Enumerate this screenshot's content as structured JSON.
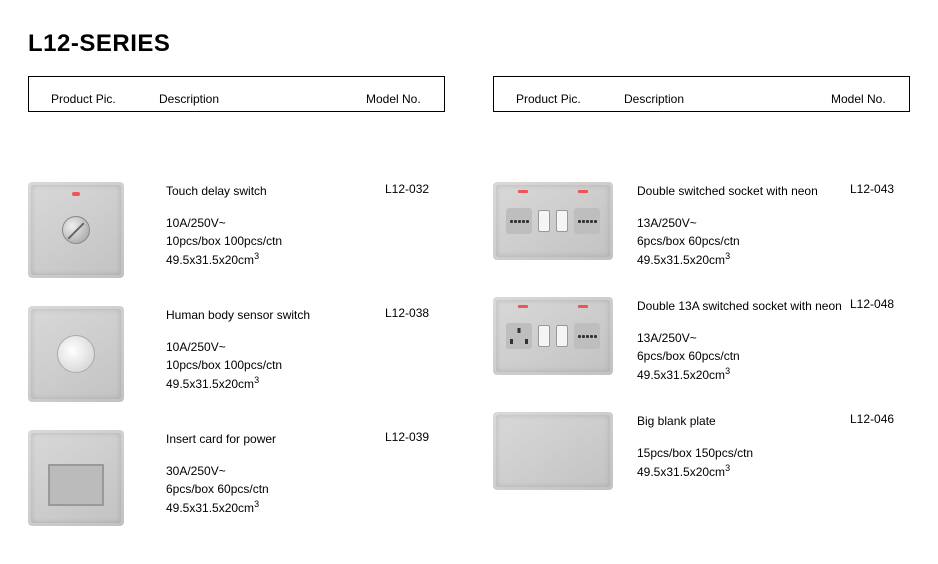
{
  "series_title": "L12-SERIES",
  "headers": {
    "pic": "Product Pic.",
    "desc": "Description",
    "model": "Model No."
  },
  "left": [
    {
      "title": "Touch delay switch",
      "spec1": "10A/250V~",
      "spec2": "10pcs/box 100pcs/ctn",
      "spec3": "49.5x31.5x20cm",
      "model": "L12-032",
      "pic_kind": "knob"
    },
    {
      "title": "Human body sensor switch",
      "spec1": "10A/250V~",
      "spec2": "10pcs/box 100pcs/ctn",
      "spec3": "49.5x31.5x20cm",
      "model": "L12-038",
      "pic_kind": "sensor"
    },
    {
      "title": "Insert card for power",
      "spec1": "30A/250V~",
      "spec2": "6pcs/box 60pcs/ctn",
      "spec3": "49.5x31.5x20cm",
      "model": "L12-039",
      "pic_kind": "card"
    }
  ],
  "right": [
    {
      "title": "Double switched socket with neon",
      "spec1": "13A/250V~",
      "spec2": "6pcs/box 60pcs/ctn",
      "spec3": "49.5x31.5x20cm",
      "model": "L12-043",
      "pic_kind": "dbl_socket"
    },
    {
      "title": "Double 13A switched socket with neon",
      "spec1": "13A/250V~",
      "spec2": "6pcs/box 60pcs/ctn",
      "spec3": "49.5x31.5x20cm",
      "model": "L12-048",
      "pic_kind": "uk_socket"
    },
    {
      "title": "Big blank plate",
      "spec1": "",
      "spec2": "15pcs/box 150pcs/ctn",
      "spec3": "49.5x31.5x20cm",
      "model": "L12-046",
      "pic_kind": "blank"
    }
  ],
  "colors": {
    "plate_bg": "#cfcfcf",
    "text": "#000000",
    "border": "#000000",
    "neon": "#e55"
  }
}
